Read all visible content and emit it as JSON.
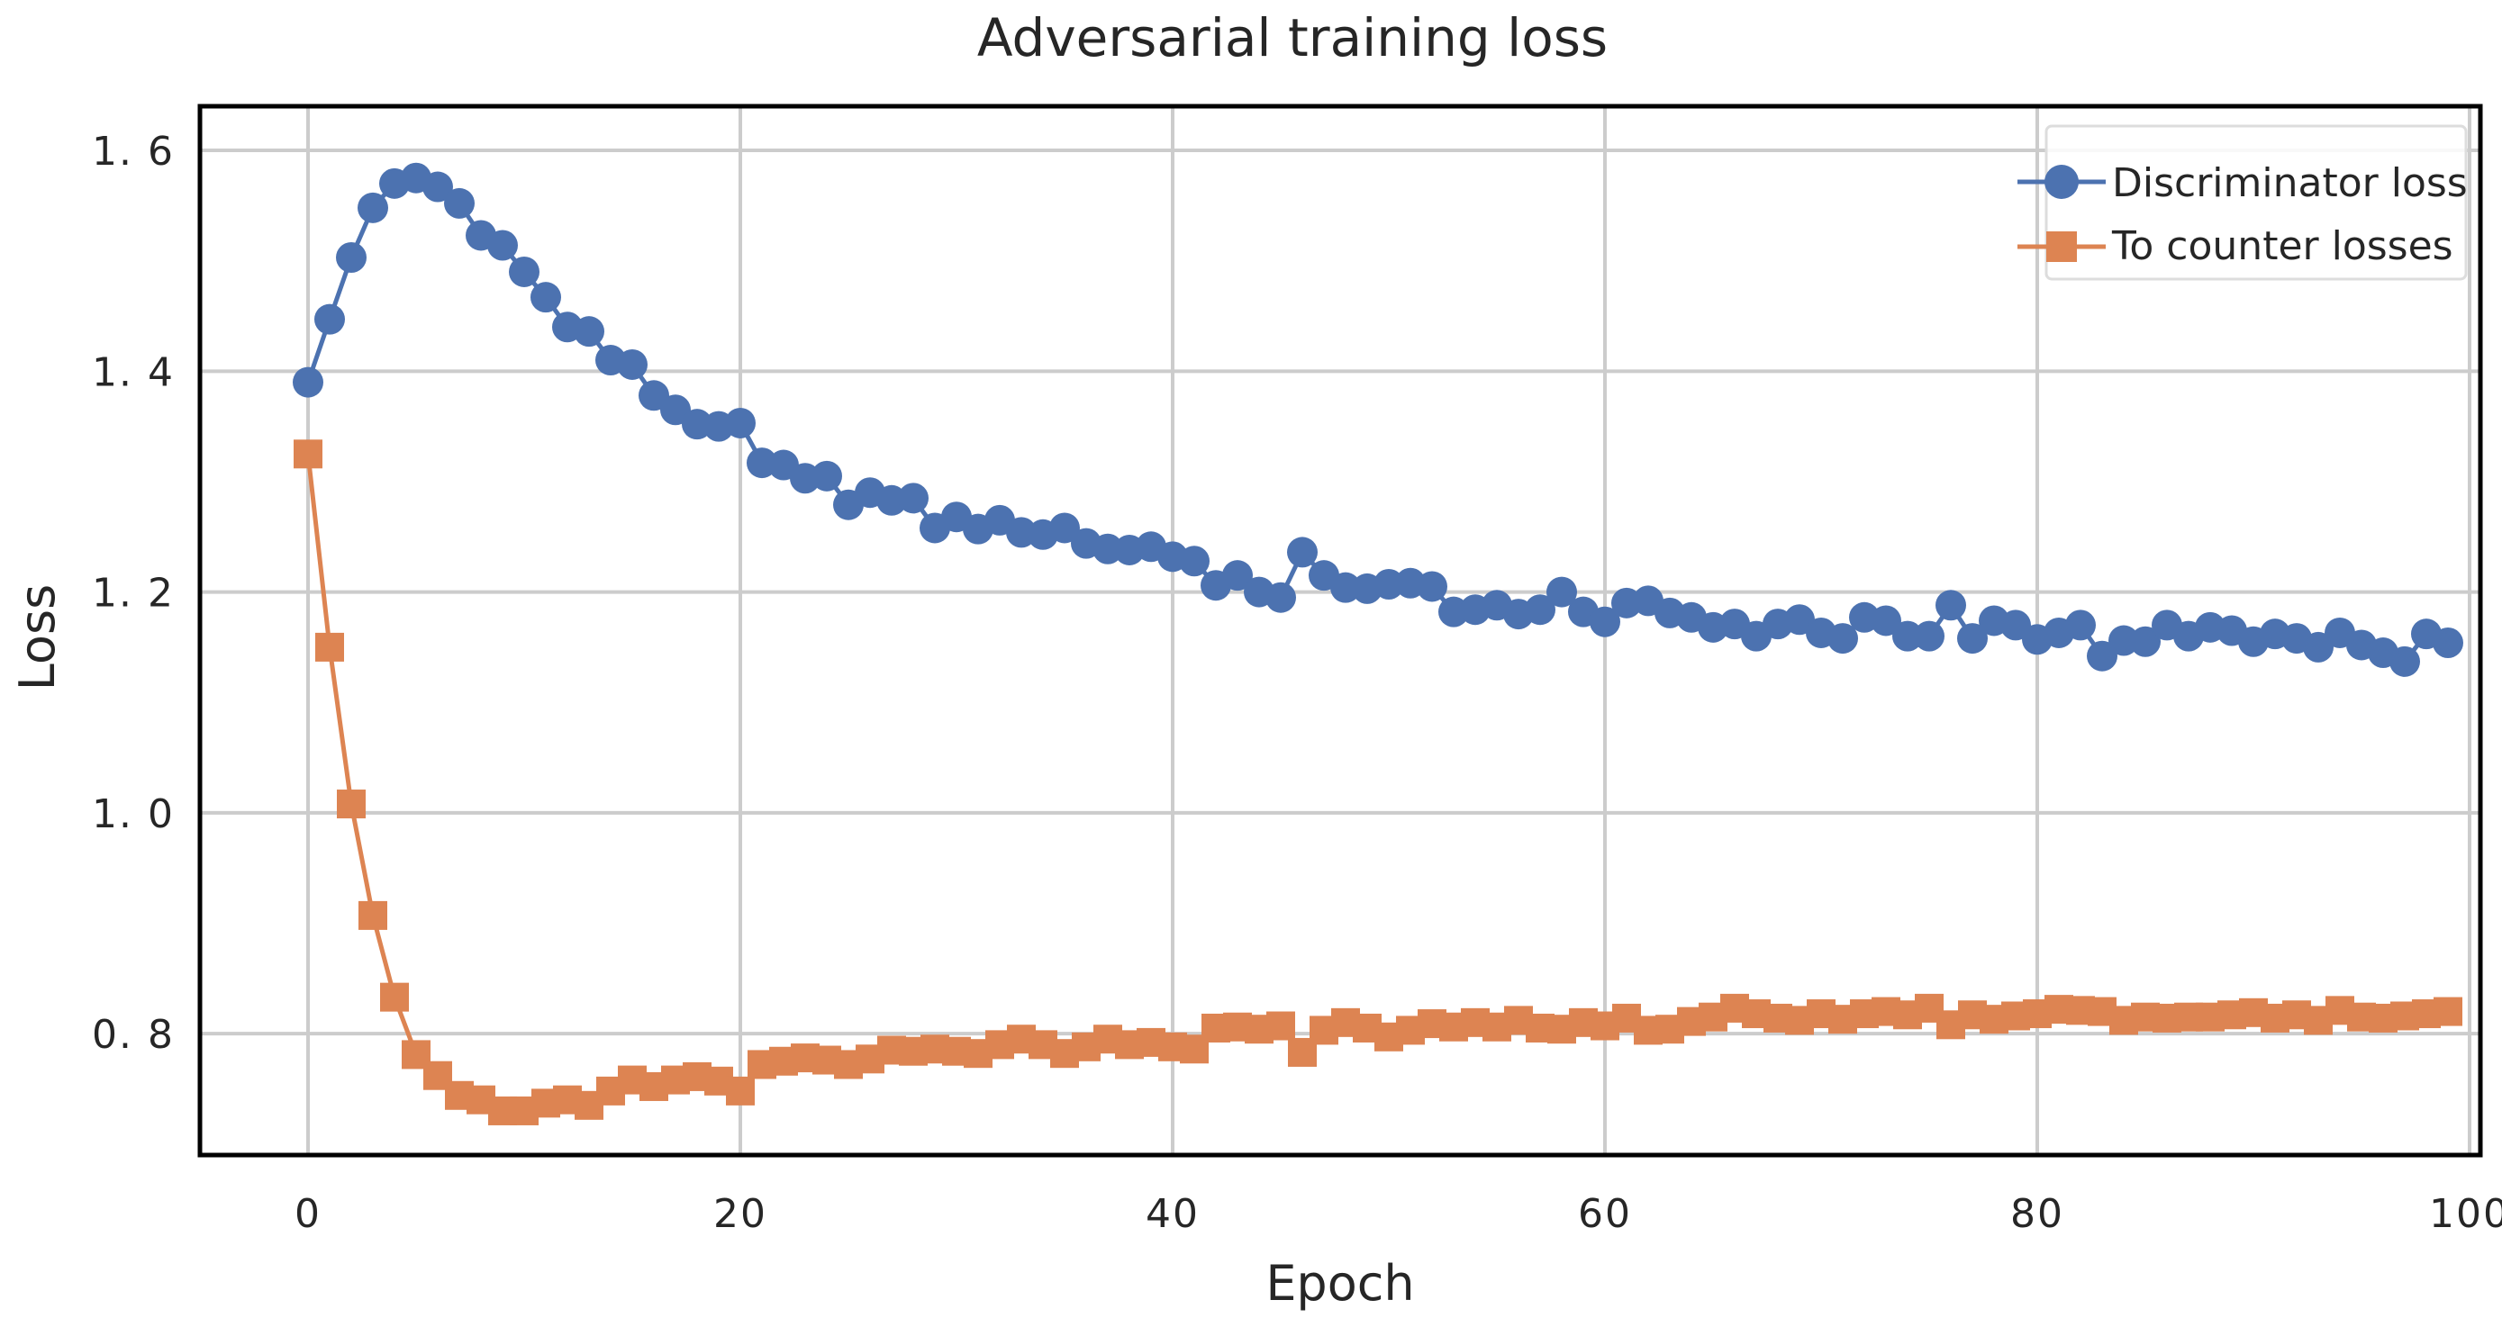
{
  "chart_data": {
    "type": "line",
    "title": "Adversarial training loss",
    "xlabel": "Epoch",
    "ylabel": "Loss",
    "xlim": [
      -5,
      100.5
    ],
    "ylim": [
      0.69,
      1.64
    ],
    "xticks": [
      0,
      20,
      40,
      60,
      80,
      100
    ],
    "xtick_labels": [
      "0",
      "20",
      "40",
      "60",
      "80",
      "100"
    ],
    "yticks": [
      0.8,
      1.0,
      1.2,
      1.4,
      1.6
    ],
    "ytick_labels": [
      "0. 8",
      "1. 0",
      "1. 2",
      "1. 4",
      "1. 6"
    ],
    "grid": true,
    "legend_position": "top-right",
    "x": [
      0,
      1,
      2,
      3,
      4,
      5,
      6,
      7,
      8,
      9,
      10,
      11,
      12,
      13,
      14,
      15,
      16,
      17,
      18,
      19,
      20,
      21,
      22,
      23,
      24,
      25,
      26,
      27,
      28,
      29,
      30,
      31,
      32,
      33,
      34,
      35,
      36,
      37,
      38,
      39,
      40,
      41,
      42,
      43,
      44,
      45,
      46,
      47,
      48,
      49,
      50,
      51,
      52,
      53,
      54,
      55,
      56,
      57,
      58,
      59,
      60,
      61,
      62,
      63,
      64,
      65,
      66,
      67,
      68,
      69,
      70,
      71,
      72,
      73,
      74,
      75,
      76,
      77,
      78,
      79,
      80,
      81,
      82,
      83,
      84,
      85,
      86,
      87,
      88,
      89,
      90,
      91,
      92,
      93,
      94,
      95,
      96,
      97,
      98,
      99
    ],
    "series": [
      {
        "name": "Discriminator loss",
        "color": "#4c72b0",
        "marker": "circle",
        "values": [
          1.39,
          1.447,
          1.503,
          1.548,
          1.57,
          1.575,
          1.567,
          1.552,
          1.523,
          1.514,
          1.49,
          1.467,
          1.44,
          1.436,
          1.41,
          1.406,
          1.378,
          1.365,
          1.352,
          1.35,
          1.353,
          1.317,
          1.315,
          1.303,
          1.305,
          1.279,
          1.29,
          1.283,
          1.285,
          1.258,
          1.268,
          1.257,
          1.265,
          1.254,
          1.252,
          1.258,
          1.244,
          1.239,
          1.238,
          1.241,
          1.232,
          1.228,
          1.206,
          1.215,
          1.2,
          1.195,
          1.236,
          1.215,
          1.204,
          1.203,
          1.207,
          1.208,
          1.205,
          1.182,
          1.184,
          1.188,
          1.18,
          1.184,
          1.2,
          1.182,
          1.173,
          1.19,
          1.192,
          1.181,
          1.177,
          1.168,
          1.171,
          1.16,
          1.171,
          1.175,
          1.163,
          1.158,
          1.177,
          1.174,
          1.16,
          1.16,
          1.188,
          1.158,
          1.174,
          1.17,
          1.157,
          1.163,
          1.17,
          1.142,
          1.156,
          1.155,
          1.17,
          1.16,
          1.168,
          1.165,
          1.155,
          1.162,
          1.158,
          1.15,
          1.163,
          1.152,
          1.145,
          1.137,
          1.162,
          1.154
        ]
      },
      {
        "name": "To counter losses",
        "color": "#dd8452",
        "marker": "square",
        "values": [
          1.325,
          1.15,
          1.008,
          0.907,
          0.833,
          0.781,
          0.762,
          0.744,
          0.74,
          0.73,
          0.73,
          0.737,
          0.74,
          0.735,
          0.748,
          0.758,
          0.752,
          0.758,
          0.761,
          0.757,
          0.748,
          0.772,
          0.775,
          0.778,
          0.776,
          0.772,
          0.777,
          0.785,
          0.784,
          0.786,
          0.784,
          0.782,
          0.79,
          0.795,
          0.79,
          0.782,
          0.788,
          0.795,
          0.79,
          0.792,
          0.788,
          0.786,
          0.805,
          0.806,
          0.804,
          0.807,
          0.783,
          0.803,
          0.81,
          0.805,
          0.797,
          0.803,
          0.809,
          0.806,
          0.81,
          0.806,
          0.812,
          0.805,
          0.804,
          0.81,
          0.807,
          0.814,
          0.803,
          0.804,
          0.811,
          0.815,
          0.823,
          0.818,
          0.814,
          0.812,
          0.818,
          0.813,
          0.818,
          0.82,
          0.817,
          0.823,
          0.808,
          0.817,
          0.813,
          0.816,
          0.818,
          0.822,
          0.821,
          0.82,
          0.812,
          0.815,
          0.814,
          0.815,
          0.815,
          0.817,
          0.819,
          0.814,
          0.817,
          0.812,
          0.821,
          0.815,
          0.814,
          0.816,
          0.818,
          0.82
        ]
      }
    ]
  }
}
